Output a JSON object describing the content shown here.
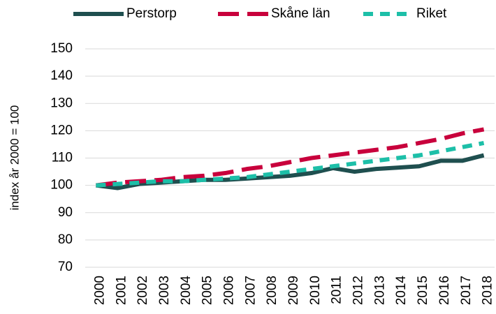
{
  "chart_data": {
    "type": "line",
    "y_label": "index år 2000 = 100",
    "categories": [
      "2000",
      "2001",
      "2002",
      "2003",
      "2004",
      "2005",
      "2006",
      "2007",
      "2008",
      "2009",
      "2010",
      "2011",
      "2012",
      "2013",
      "2014",
      "2015",
      "2016",
      "2017",
      "2018"
    ],
    "series": [
      {
        "name": "Perstorp",
        "color": "#1f4f4f",
        "dash": "solid",
        "values": [
          100,
          99,
          100.5,
          101,
          101.5,
          102,
          102,
          102.5,
          103,
          103.5,
          104.5,
          106.3,
          105,
          106,
          106.5,
          107,
          109,
          109,
          111
        ]
      },
      {
        "name": "Skåne län",
        "color": "#c8003c",
        "dash": "long",
        "values": [
          100,
          101,
          101.5,
          102,
          103,
          103.5,
          104.5,
          106,
          107,
          108.5,
          110,
          111,
          112,
          113,
          114,
          115.5,
          117,
          119,
          120.5
        ]
      },
      {
        "name": "Riket",
        "color": "#1dbfa8",
        "dash": "short",
        "values": [
          100,
          100.5,
          101,
          101.5,
          101.5,
          102,
          102.5,
          103,
          104,
          105,
          106,
          107,
          108,
          109,
          110,
          111,
          112.5,
          114,
          115.5
        ]
      }
    ],
    "ylim": [
      70,
      150
    ],
    "yticks": [
      70,
      80,
      90,
      100,
      110,
      120,
      130,
      140,
      150
    ],
    "grid": true,
    "legend": "top"
  }
}
